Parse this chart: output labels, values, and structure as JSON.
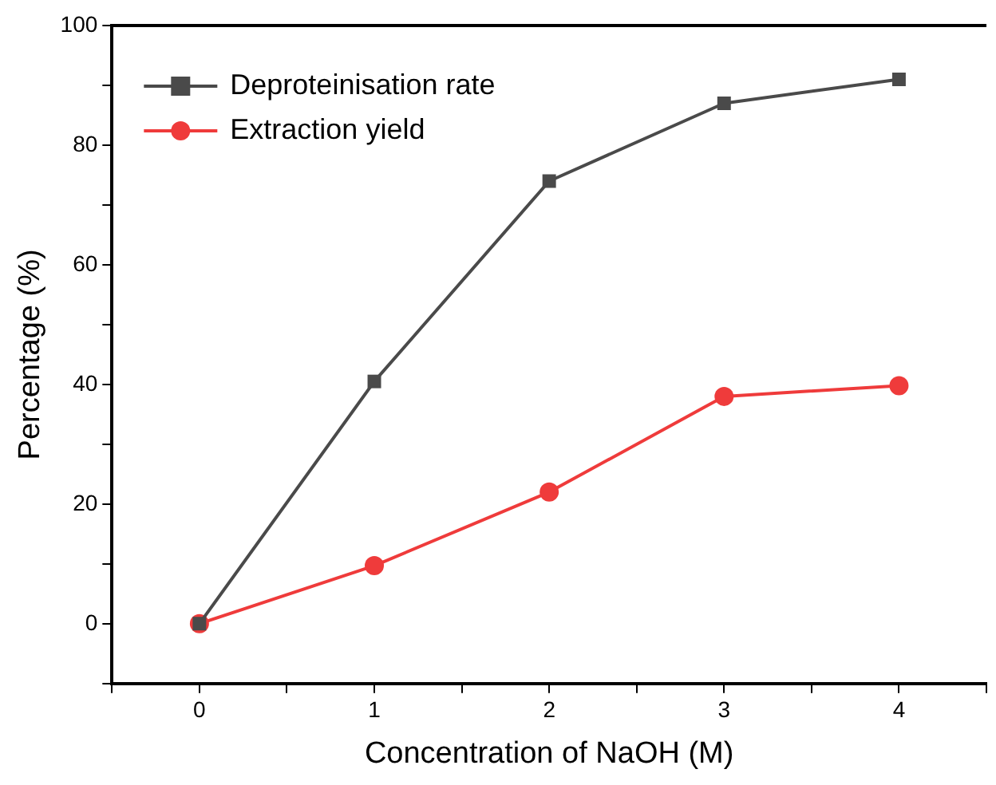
{
  "chart_data": {
    "type": "line",
    "xlabel": "Concentration of NaOH (M)",
    "ylabel": "Percentage (%)",
    "x": [
      0,
      1,
      2,
      3,
      4
    ],
    "series": [
      {
        "name": "Deproteinisation rate",
        "color": "#4a4a4a",
        "marker": "square",
        "values": [
          0,
          40.5,
          74,
          87,
          91
        ]
      },
      {
        "name": "Extraction yield",
        "color": "#ef3b3b",
        "marker": "circle",
        "values": [
          0,
          9.7,
          22,
          38,
          39.8
        ]
      }
    ],
    "xlim": [
      -0.5,
      4.5
    ],
    "xticks": [
      {
        "value": -0.5,
        "label": null
      },
      0,
      {
        "value": 0.5,
        "label": null
      },
      1,
      {
        "value": 1.5,
        "label": null
      },
      2,
      {
        "value": 2.5,
        "label": null
      },
      3,
      {
        "value": 3.5,
        "label": null
      },
      4,
      {
        "value": 4.5,
        "label": null
      }
    ],
    "ylim": [
      -10,
      100
    ],
    "yticks": [
      {
        "value": -10,
        "label": null
      },
      0,
      {
        "value": 10,
        "label": null
      },
      20,
      {
        "value": 30,
        "label": null
      },
      40,
      {
        "value": 50,
        "label": null
      },
      60,
      {
        "value": 70,
        "label": null
      },
      80,
      {
        "value": 90,
        "label": null
      },
      100
    ],
    "grid": false,
    "legend": "top left",
    "line_style": "solid"
  }
}
